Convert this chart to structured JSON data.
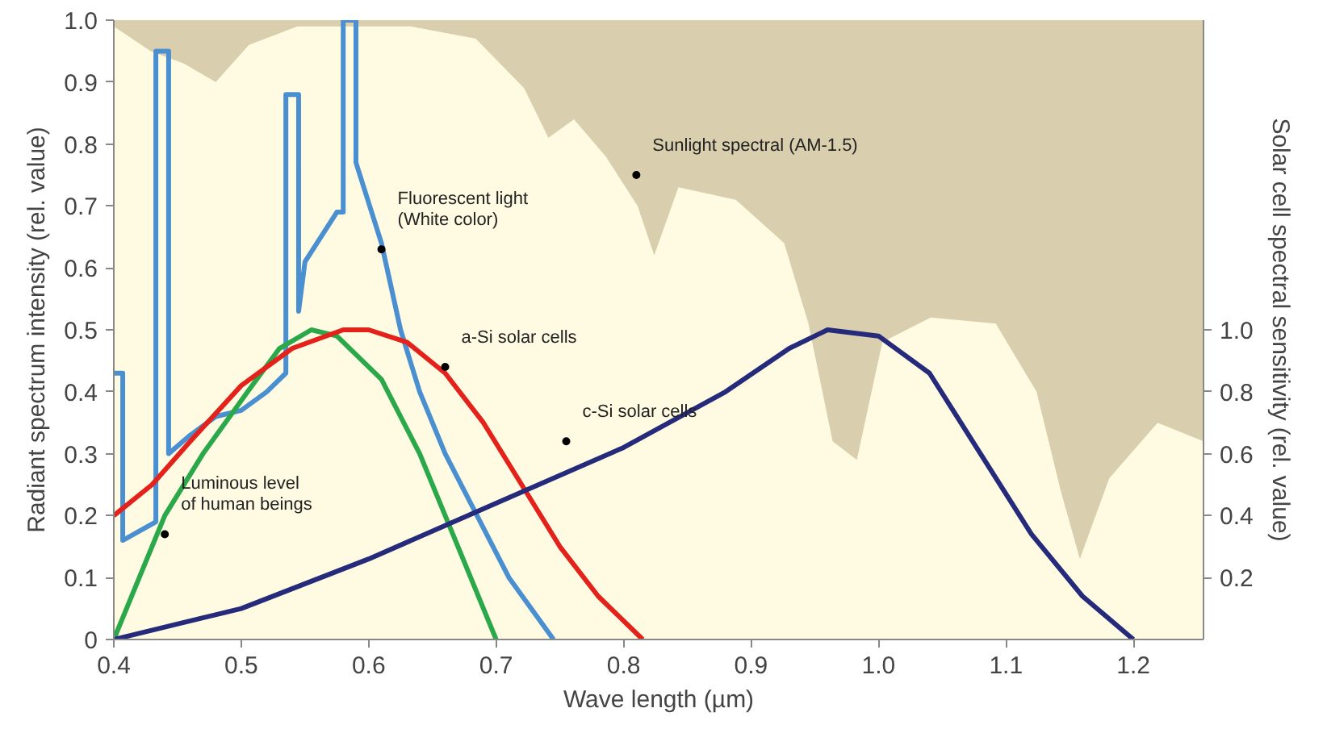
{
  "chart_data": {
    "type": "line",
    "xlabel": "Wave length (µm)",
    "ylabel": "Radiant spectrum intensity (rel. value)",
    "y2label": "Solar cell spectral sensitivity (rel. value)",
    "xlim": [
      0.4,
      1.255
    ],
    "xticks": [
      0.4,
      0.5,
      0.6,
      0.7,
      0.8,
      0.9,
      {
        "value": 1,
        "label": "1.0"
      },
      1.1,
      1.2
    ],
    "ylim": [
      0,
      1.0
    ],
    "yticks": [
      0,
      0.1,
      0.2,
      0.3,
      0.4,
      0.5,
      0.6,
      0.7,
      0.8,
      0.9,
      {
        "value": 1,
        "label": "1.0"
      }
    ],
    "y2lim": [
      0,
      2.0
    ],
    "y2ticks": [
      0.2,
      0.4,
      0.6,
      0.8,
      {
        "value": 1,
        "label": "1.0"
      }
    ],
    "bands": [
      {
        "axis": "y",
        "from": 0,
        "to": 1.0,
        "color": "#d9cfae"
      }
    ],
    "series": [
      {
        "type": "area",
        "color": "#fffbe3",
        "x": [
          0.4,
          0.429,
          0.455,
          0.48,
          0.506,
          0.544,
          0.633,
          0.684,
          0.722,
          0.741,
          0.761,
          0.786,
          0.811,
          0.824,
          0.843,
          0.888,
          0.926,
          0.945,
          0.964,
          0.983,
          1.003,
          1.041,
          1.092,
          1.124,
          1.143,
          1.158,
          1.181,
          1.219,
          1.255
        ],
        "values": [
          0.99,
          0.95,
          0.93,
          0.9,
          0.96,
          0.99,
          0.99,
          0.97,
          0.89,
          0.81,
          0.84,
          0.78,
          0.7,
          0.62,
          0.73,
          0.71,
          0.64,
          0.51,
          0.32,
          0.29,
          0.48,
          0.52,
          0.51,
          0.4,
          0.24,
          0.13,
          0.26,
          0.35,
          0.32
        ]
      },
      {
        "color": "#4a90d0",
        "x": [
          0.4,
          0.407,
          0.407,
          0.433,
          0.433,
          0.443,
          0.443,
          0.46,
          0.48,
          0.5,
          0.52,
          0.535,
          0.535,
          0.545,
          0.545,
          0.55,
          0.575,
          0.58,
          0.58,
          0.59,
          0.59,
          0.61,
          0.625,
          0.64,
          0.66,
          0.685,
          0.71,
          0.745
        ],
        "values": [
          0.43,
          0.43,
          0.16,
          0.19,
          0.95,
          0.95,
          0.3,
          0.33,
          0.36,
          0.37,
          0.4,
          0.43,
          0.88,
          0.88,
          0.53,
          0.61,
          0.69,
          0.69,
          1.0,
          1.0,
          0.77,
          0.64,
          0.5,
          0.4,
          0.3,
          0.2,
          0.1,
          0
        ]
      },
      {
        "color": "#2aa84a",
        "x": [
          0.4,
          0.42,
          0.44,
          0.47,
          0.505,
          0.53,
          0.555,
          0.575,
          0.61,
          0.64,
          0.66,
          0.68,
          0.7
        ],
        "values": [
          0,
          0.1,
          0.2,
          0.3,
          0.4,
          0.47,
          0.5,
          0.49,
          0.42,
          0.3,
          0.2,
          0.1,
          0
        ]
      },
      {
        "axis": "y2",
        "color": "#e3231b",
        "x": [
          0.4,
          0.43,
          0.46,
          0.5,
          0.54,
          0.58,
          0.6,
          0.63,
          0.66,
          0.69,
          0.72,
          0.75,
          0.78,
          0.815
        ],
        "values": [
          0.4,
          0.5,
          0.64,
          0.82,
          0.94,
          1.0,
          1.0,
          0.96,
          0.86,
          0.7,
          0.5,
          0.3,
          0.14,
          0
        ]
      },
      {
        "axis": "y2",
        "color": "#252a7a",
        "x": [
          0.4,
          0.5,
          0.6,
          0.7,
          0.8,
          0.88,
          0.93,
          0.96,
          1.0,
          1.04,
          1.08,
          1.12,
          1.16,
          1.2
        ],
        "values": [
          0,
          0.1,
          0.26,
          0.44,
          0.62,
          0.8,
          0.94,
          1.0,
          0.98,
          0.86,
          0.6,
          0.34,
          0.14,
          0
        ]
      }
    ],
    "annotations": [
      {
        "text": "Sunlight spectral (AM-1.5)",
        "x": 0.81,
        "y": 0.75
      },
      {
        "text": "Fluorescent light\n(White color)",
        "x": 0.61,
        "y": 0.63
      },
      {
        "text": "a-Si solar cells",
        "x": 0.66,
        "y": 0.44
      },
      {
        "text": "c-Si solar cells",
        "x": 0.755,
        "y": 0.32
      },
      {
        "text": "Luminous level\nof human beings",
        "x": 0.44,
        "y": 0.17
      }
    ]
  }
}
